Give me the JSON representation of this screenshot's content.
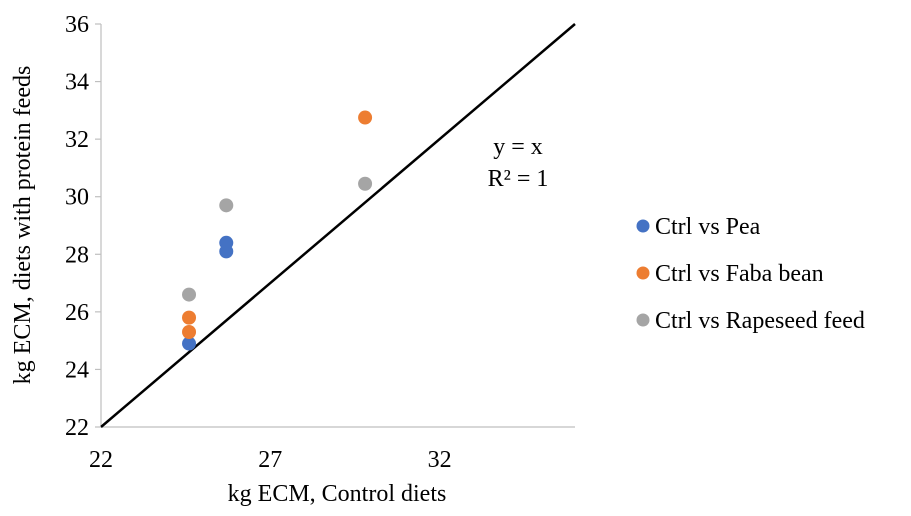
{
  "chart_data": {
    "type": "scatter",
    "title": "",
    "xlabel": "kg ECM, Control diets",
    "ylabel": "kg ECM, diets with protein feeds",
    "xlim": [
      22,
      36
    ],
    "ylim": [
      22,
      36
    ],
    "x_ticks": [
      "22",
      "27",
      "32"
    ],
    "y_ticks": [
      "22",
      "24",
      "26",
      "28",
      "30",
      "32",
      "34",
      "36"
    ],
    "grid": false,
    "legend_position": "right",
    "annotation": [
      "y = x",
      "R² = 1"
    ],
    "reference_line": {
      "slope": 1,
      "intercept": 0,
      "color": "#000000"
    },
    "series": [
      {
        "name": "Ctrl vs Pea",
        "color": "#4472C4",
        "x": [
          24.6,
          25.7,
          25.7
        ],
        "y": [
          24.9,
          28.1,
          28.4
        ]
      },
      {
        "name": "Ctrl vs Faba bean",
        "color": "#ED7D31",
        "x": [
          24.6,
          24.6,
          29.8
        ],
        "y": [
          25.3,
          25.8,
          32.75
        ]
      },
      {
        "name": "Ctrl vs Rapeseed feed",
        "color": "#A5A5A5",
        "x": [
          24.6,
          25.7,
          29.8
        ],
        "y": [
          26.6,
          29.7,
          30.45
        ]
      }
    ]
  }
}
